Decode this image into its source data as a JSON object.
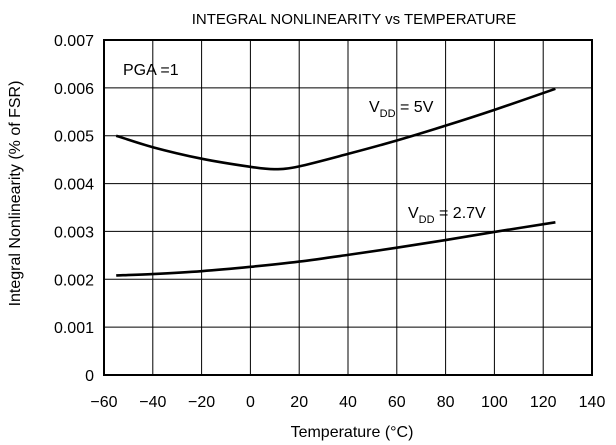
{
  "chart_data": {
    "type": "line",
    "title": "INTEGRAL NONLINEARITY vs TEMPERATURE",
    "xlabel": "Temperature (°C)",
    "ylabel": "Integral Nonlinearity (% of FSR)",
    "xlim": [
      -60,
      140
    ],
    "ylim": [
      0,
      0.007
    ],
    "x_ticks": [
      "−60",
      "−40",
      "−20",
      "0",
      "20",
      "40",
      "60",
      "80",
      "100",
      "120",
      "140"
    ],
    "y_ticks": [
      "0",
      "0.001",
      "0.002",
      "0.003",
      "0.004",
      "0.005",
      "0.006",
      "0.007"
    ],
    "grid": true,
    "legend": "none",
    "annotations": {
      "pga": "PGA =1"
    },
    "series": [
      {
        "label_main": "V",
        "label_sub": "DD",
        "label_rest": " = 5V",
        "x": [
          -55,
          -40,
          -20,
          0,
          10,
          20,
          40,
          60,
          80,
          100,
          125
        ],
        "y": [
          0.005,
          0.00476,
          0.00452,
          0.00435,
          0.0043,
          0.00436,
          0.00462,
          0.0049,
          0.00521,
          0.00554,
          0.00598
        ]
      },
      {
        "label_main": "V",
        "label_sub": "DD",
        "label_rest": " = 2.7V",
        "x": [
          -55,
          -40,
          -20,
          0,
          20,
          40,
          60,
          80,
          100,
          125
        ],
        "y": [
          0.00208,
          0.00211,
          0.00217,
          0.00226,
          0.00237,
          0.00251,
          0.00266,
          0.00282,
          0.00299,
          0.00319
        ]
      }
    ]
  }
}
